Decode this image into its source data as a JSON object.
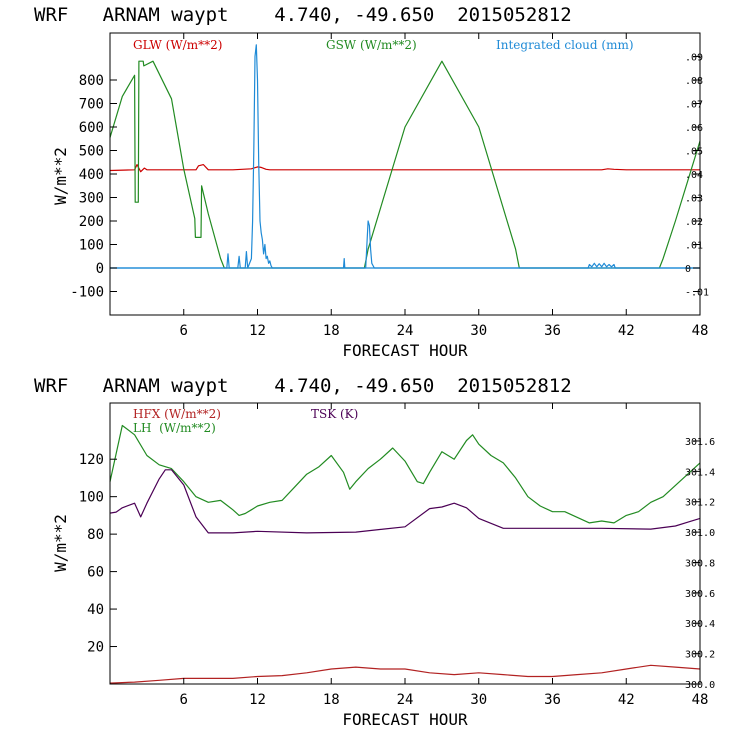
{
  "chart_data": [
    {
      "type": "line",
      "title": "WRF   ARNAM waypt    4.740, -49.650  2015052812",
      "xlabel": "FORECAST HOUR",
      "ylabel": "W/m**2",
      "xlim": [
        0,
        48
      ],
      "ylim": [
        -200,
        1000
      ],
      "xticks": [
        6,
        12,
        18,
        24,
        30,
        36,
        42,
        48
      ],
      "yticks": [
        -100,
        0,
        100,
        200,
        300,
        400,
        500,
        600,
        700,
        800
      ],
      "y2lim": [
        -0.02,
        0.1
      ],
      "y2ticks": [
        -0.01,
        0,
        0.01,
        0.02,
        0.03,
        0.04,
        0.05,
        0.06,
        0.07,
        0.08,
        0.09
      ],
      "y2ticklabels": [
        "-.01",
        "0",
        ".01",
        ".02",
        ".03",
        ".04",
        ".05",
        ".06",
        ".07",
        ".08",
        ".09"
      ],
      "series": [
        {
          "name": "GLW (W/m**2)",
          "color": "#cc0000",
          "axis": "left",
          "x": [
            0,
            2,
            2.2,
            2.5,
            2.8,
            3,
            5,
            7,
            7.2,
            7.6,
            8,
            10,
            11.5,
            12,
            12.3,
            12.7,
            13,
            20,
            24,
            30,
            36,
            40,
            40.5,
            41,
            42,
            48
          ],
          "y": [
            415,
            418,
            440,
            410,
            425,
            418,
            418,
            418,
            435,
            440,
            418,
            418,
            422,
            430,
            428,
            420,
            418,
            418,
            418,
            418,
            418,
            418,
            422,
            420,
            418,
            418
          ]
        },
        {
          "name": "GSW (W/m**2)",
          "color": "#228b22",
          "axis": "left",
          "x": [
            0,
            1,
            2,
            2.05,
            2.3,
            2.35,
            2.7,
            2.75,
            3.5,
            5,
            6,
            6.9,
            6.95,
            7.4,
            7.45,
            8,
            9,
            9.3,
            20.7,
            21,
            24,
            27,
            30,
            33,
            33.3,
            44.7,
            45,
            46,
            47,
            48
          ],
          "y": [
            555,
            730,
            820,
            280,
            280,
            880,
            880,
            860,
            880,
            720,
            420,
            210,
            130,
            130,
            350,
            230,
            40,
            0,
            0,
            80,
            600,
            880,
            600,
            80,
            0,
            0,
            40,
            200,
            370,
            540
          ]
        },
        {
          "name": "Integrated cloud (mm)",
          "color": "#1e8ad6",
          "axis": "right",
          "x": [
            0,
            9.5,
            9.6,
            9.7,
            10.4,
            10.5,
            10.6,
            11,
            11.1,
            11.2,
            11.5,
            11.6,
            11.7,
            11.8,
            11.9,
            12.0,
            12.1,
            12.2,
            12.3,
            12.4,
            12.5,
            12.6,
            12.7,
            12.8,
            12.9,
            13.0,
            13.1,
            13.2,
            19.0,
            19.05,
            19.1,
            20.8,
            20.9,
            21.0,
            21.1,
            21.2,
            21.3,
            21.5,
            38.9,
            39.0,
            39.2,
            39.4,
            39.6,
            39.8,
            40.0,
            40.2,
            40.4,
            40.6,
            40.8,
            41.0,
            41.1,
            48
          ],
          "y": [
            0,
            0,
            0.006,
            0,
            0,
            0.005,
            0,
            0,
            0.007,
            0,
            0.004,
            0.02,
            0.05,
            0.09,
            0.095,
            0.08,
            0.045,
            0.02,
            0.015,
            0.012,
            0.006,
            0.01,
            0.004,
            0.005,
            0.002,
            0.003,
            0.001,
            0,
            0,
            0.004,
            0,
            0,
            0.01,
            0.02,
            0.018,
            0.008,
            0.002,
            0,
            0,
            0.0015,
            0.0005,
            0.002,
            0.0005,
            0.0018,
            0.0005,
            0.002,
            0.0005,
            0.0015,
            0.0005,
            0.0015,
            0,
            0
          ]
        }
      ]
    },
    {
      "type": "line",
      "title": "WRF   ARNAM waypt    4.740, -49.650  2015052812",
      "xlabel": "FORECAST HOUR",
      "ylabel": "W/m**2",
      "xlim": [
        0,
        48
      ],
      "ylim": [
        0,
        150
      ],
      "xticks": [
        6,
        12,
        18,
        24,
        30,
        36,
        42,
        48
      ],
      "yticks": [
        20,
        40,
        60,
        80,
        100,
        120
      ],
      "y2lim": [
        300,
        301.85
      ],
      "y2ticks": [
        300.0,
        300.2,
        300.4,
        300.6,
        300.8,
        301.0,
        301.2,
        301.4,
        301.6
      ],
      "y2ticklabels": [
        "300.0",
        "300.2",
        "300.4",
        "300.6",
        "300.8",
        "301.0",
        "301.2",
        "301.4",
        "301.6"
      ],
      "series": [
        {
          "name": "HFX (W/m**2)",
          "color": "#b22222",
          "axis": "left",
          "x": [
            0,
            2,
            4,
            6,
            8,
            10,
            12,
            14,
            16,
            18,
            20,
            22,
            24,
            26,
            28,
            30,
            32,
            34,
            36,
            38,
            40,
            42,
            44,
            46,
            48
          ],
          "y": [
            0.5,
            1,
            2,
            3,
            3,
            3,
            4,
            4.5,
            6,
            8,
            9,
            8,
            8,
            6,
            5,
            6,
            5,
            4,
            4,
            5,
            6,
            8,
            10,
            9,
            8
          ]
        },
        {
          "name": "LH  (W/m**2)",
          "color": "#228b22",
          "axis": "left",
          "x": [
            0,
            1,
            2,
            3,
            4,
            5,
            6,
            7,
            8,
            9,
            10,
            10.5,
            11,
            11.5,
            12,
            13,
            14,
            15,
            16,
            17,
            18,
            19,
            19.5,
            20,
            21,
            22,
            23,
            24,
            25,
            25.5,
            26,
            27,
            28,
            29,
            29.5,
            30,
            31,
            32,
            33,
            34,
            35,
            36,
            37,
            38,
            39,
            40,
            41,
            42,
            43,
            44,
            45,
            46,
            47,
            48
          ],
          "y": [
            108,
            138,
            133,
            122,
            117,
            115,
            108,
            100,
            97,
            98,
            93,
            90,
            91,
            93,
            95,
            97,
            98,
            105,
            112,
            116,
            122,
            113,
            104,
            108,
            115,
            120,
            126,
            119,
            108,
            107,
            113,
            124,
            120,
            130,
            133,
            128,
            122,
            118,
            110,
            100,
            95,
            92,
            92,
            89,
            86,
            87,
            86,
            90,
            92,
            97,
            100,
            106,
            112,
            118
          ]
        },
        {
          "name": "TSK (K)",
          "color": "#4b0055",
          "axis": "right",
          "x": [
            0,
            0.5,
            1,
            2,
            2.5,
            3,
            4,
            4.5,
            5,
            6,
            7,
            8,
            10,
            12,
            16,
            20,
            24,
            26,
            27,
            28,
            29,
            30,
            32,
            36,
            40,
            44,
            46,
            47,
            48
          ],
          "y": [
            301.125,
            301.132,
            301.16,
            301.19,
            301.1,
            301.19,
            301.35,
            301.41,
            301.41,
            301.31,
            301.1,
            300.995,
            300.995,
            301.005,
            300.995,
            301.0,
            301.035,
            301.155,
            301.165,
            301.19,
            301.16,
            301.09,
            301.025,
            301.025,
            301.025,
            301.02,
            301.04,
            301.065,
            301.09
          ]
        }
      ]
    }
  ]
}
